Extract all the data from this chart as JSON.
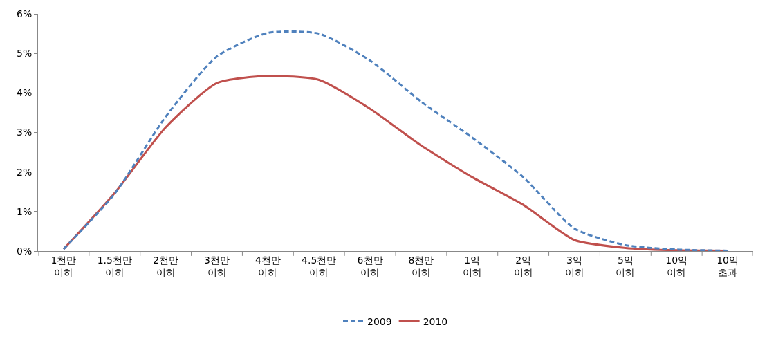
{
  "chart_data": {
    "type": "line",
    "categories": [
      "1천만\n이하",
      "1.5천만\n이하",
      "2천만\n이하",
      "3천만\n이하",
      "4천만\n이하",
      "4.5천만\n이하",
      "6천만\n이하",
      "8천만\n이하",
      "1억\n이하",
      "2억\n이하",
      "3억\n이하",
      "5억\n이하",
      "10억\n이하",
      "10억\n초과"
    ],
    "series": [
      {
        "name": "2009",
        "color": "#4f81bd",
        "line_style": "dashed",
        "values": [
          0.05,
          1.45,
          3.4,
          4.92,
          5.52,
          5.5,
          4.82,
          3.78,
          2.87,
          1.87,
          0.57,
          0.15,
          0.04,
          0.01
        ]
      },
      {
        "name": "2010",
        "color": "#c0504d",
        "line_style": "solid",
        "values": [
          0.05,
          1.47,
          3.13,
          4.25,
          4.43,
          4.33,
          3.6,
          2.67,
          1.87,
          1.17,
          0.28,
          0.08,
          0.02,
          0.01
        ]
      }
    ],
    "ylim": [
      0,
      6
    ],
    "yticks": [
      {
        "value": 0,
        "label": "0%"
      },
      {
        "value": 1,
        "label": "1%"
      },
      {
        "value": 2,
        "label": "2%"
      },
      {
        "value": 3,
        "label": "3%"
      },
      {
        "value": 4,
        "label": "4%"
      },
      {
        "value": 5,
        "label": "5%"
      },
      {
        "value": 6,
        "label": "6%"
      }
    ],
    "grid": false,
    "legend": "bottom",
    "marker": "none"
  }
}
